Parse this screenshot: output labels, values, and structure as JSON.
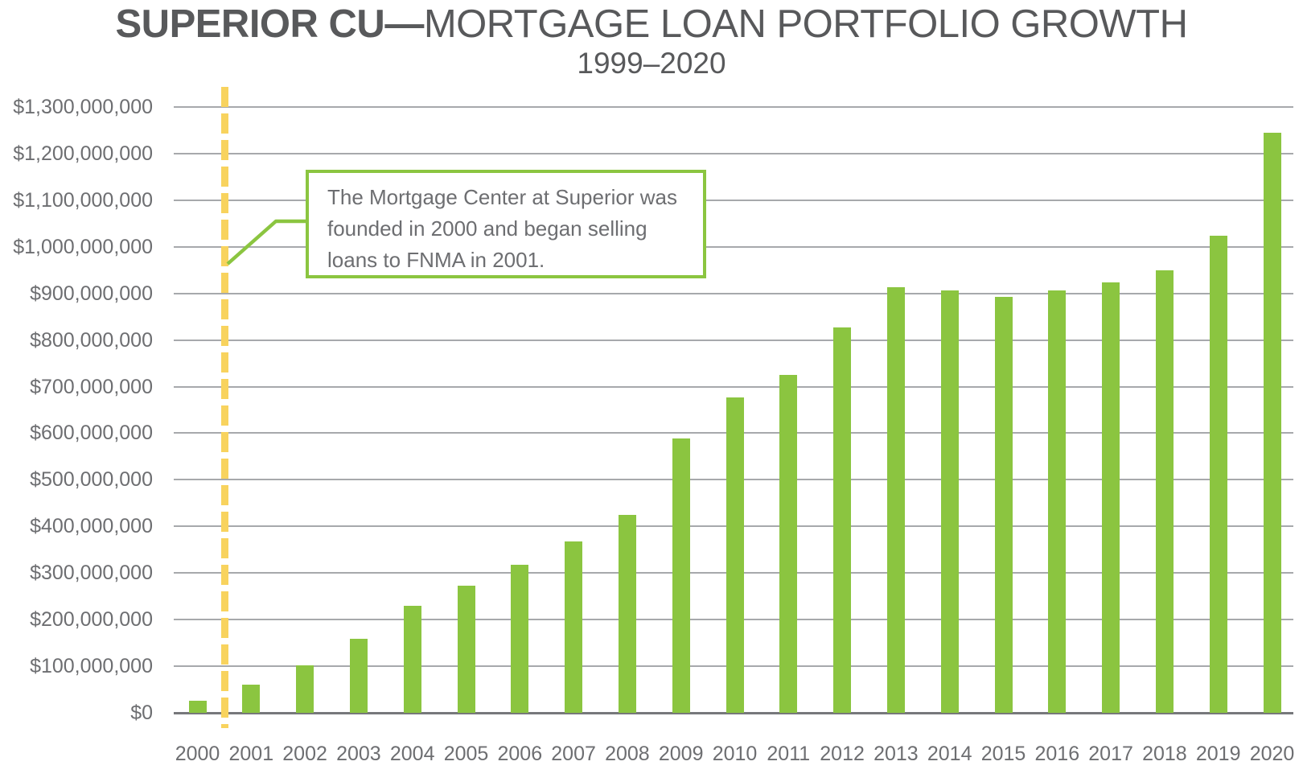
{
  "header": {
    "title_bold": "SUPERIOR CU—",
    "title_rest": "MORTGAGE LOAN PORTFOLIO GROWTH",
    "subtitle": "1999–2020"
  },
  "annotation": {
    "full_text": "The Mortgage Center at Superior was founded in 2000 and began selling loans to FNMA in 2001.",
    "lines": [
      "The Mortgage Center at Superior was",
      "founded in 2000 and began selling",
      "loans to FNMA in 2001."
    ]
  },
  "chart_data": {
    "type": "bar",
    "title": "SUPERIOR CU—MORTGAGE LOAN PORTFOLIO GROWTH",
    "subtitle": "1999–2020",
    "categories": [
      "2000",
      "2001",
      "2002",
      "2003",
      "2004",
      "2005",
      "2006",
      "2007",
      "2008",
      "2009",
      "2010",
      "2011",
      "2012",
      "2013",
      "2014",
      "2015",
      "2016",
      "2017",
      "2018",
      "2019",
      "2020"
    ],
    "values": [
      26000000,
      60000000,
      102000000,
      159000000,
      229000000,
      273000000,
      318000000,
      368000000,
      424000000,
      588000000,
      676000000,
      725000000,
      827000000,
      913000000,
      907000000,
      892000000,
      906000000,
      923000000,
      949000000,
      1023000000,
      1245000000
    ],
    "xlabel": "",
    "ylabel": "",
    "ylim": [
      0,
      1300000000
    ],
    "ytick_step": 100000000,
    "ytick_labels": [
      "$0",
      "$100,000,000",
      "$200,000,000",
      "$300,000,000",
      "$400,000,000",
      "$500,000,000",
      "$600,000,000",
      "$700,000,000",
      "$800,000,000",
      "$900,000,000",
      "$1,000,000,000",
      "$1,100,000,000",
      "$1,200,000,000",
      "$1,300,000,000"
    ],
    "grid": true,
    "legend": "none",
    "event_line": {
      "between_years": [
        "2000",
        "2001"
      ],
      "style": "dashed",
      "color": "#F8D35E"
    },
    "annotation_text": "The Mortgage Center at Superior was founded in 2000 and began selling loans to FNMA in 2001.",
    "colors": {
      "bar": "#8BC540",
      "callout_border": "#8BC540",
      "leader_line": "#8BC540",
      "event_yellow": "#F8D35E",
      "gridline": "#A7A9AC",
      "axis": "#77787B",
      "label_gray": "#6D6E71",
      "title_gray": "#58595B",
      "background": "#FFFFFF"
    }
  }
}
